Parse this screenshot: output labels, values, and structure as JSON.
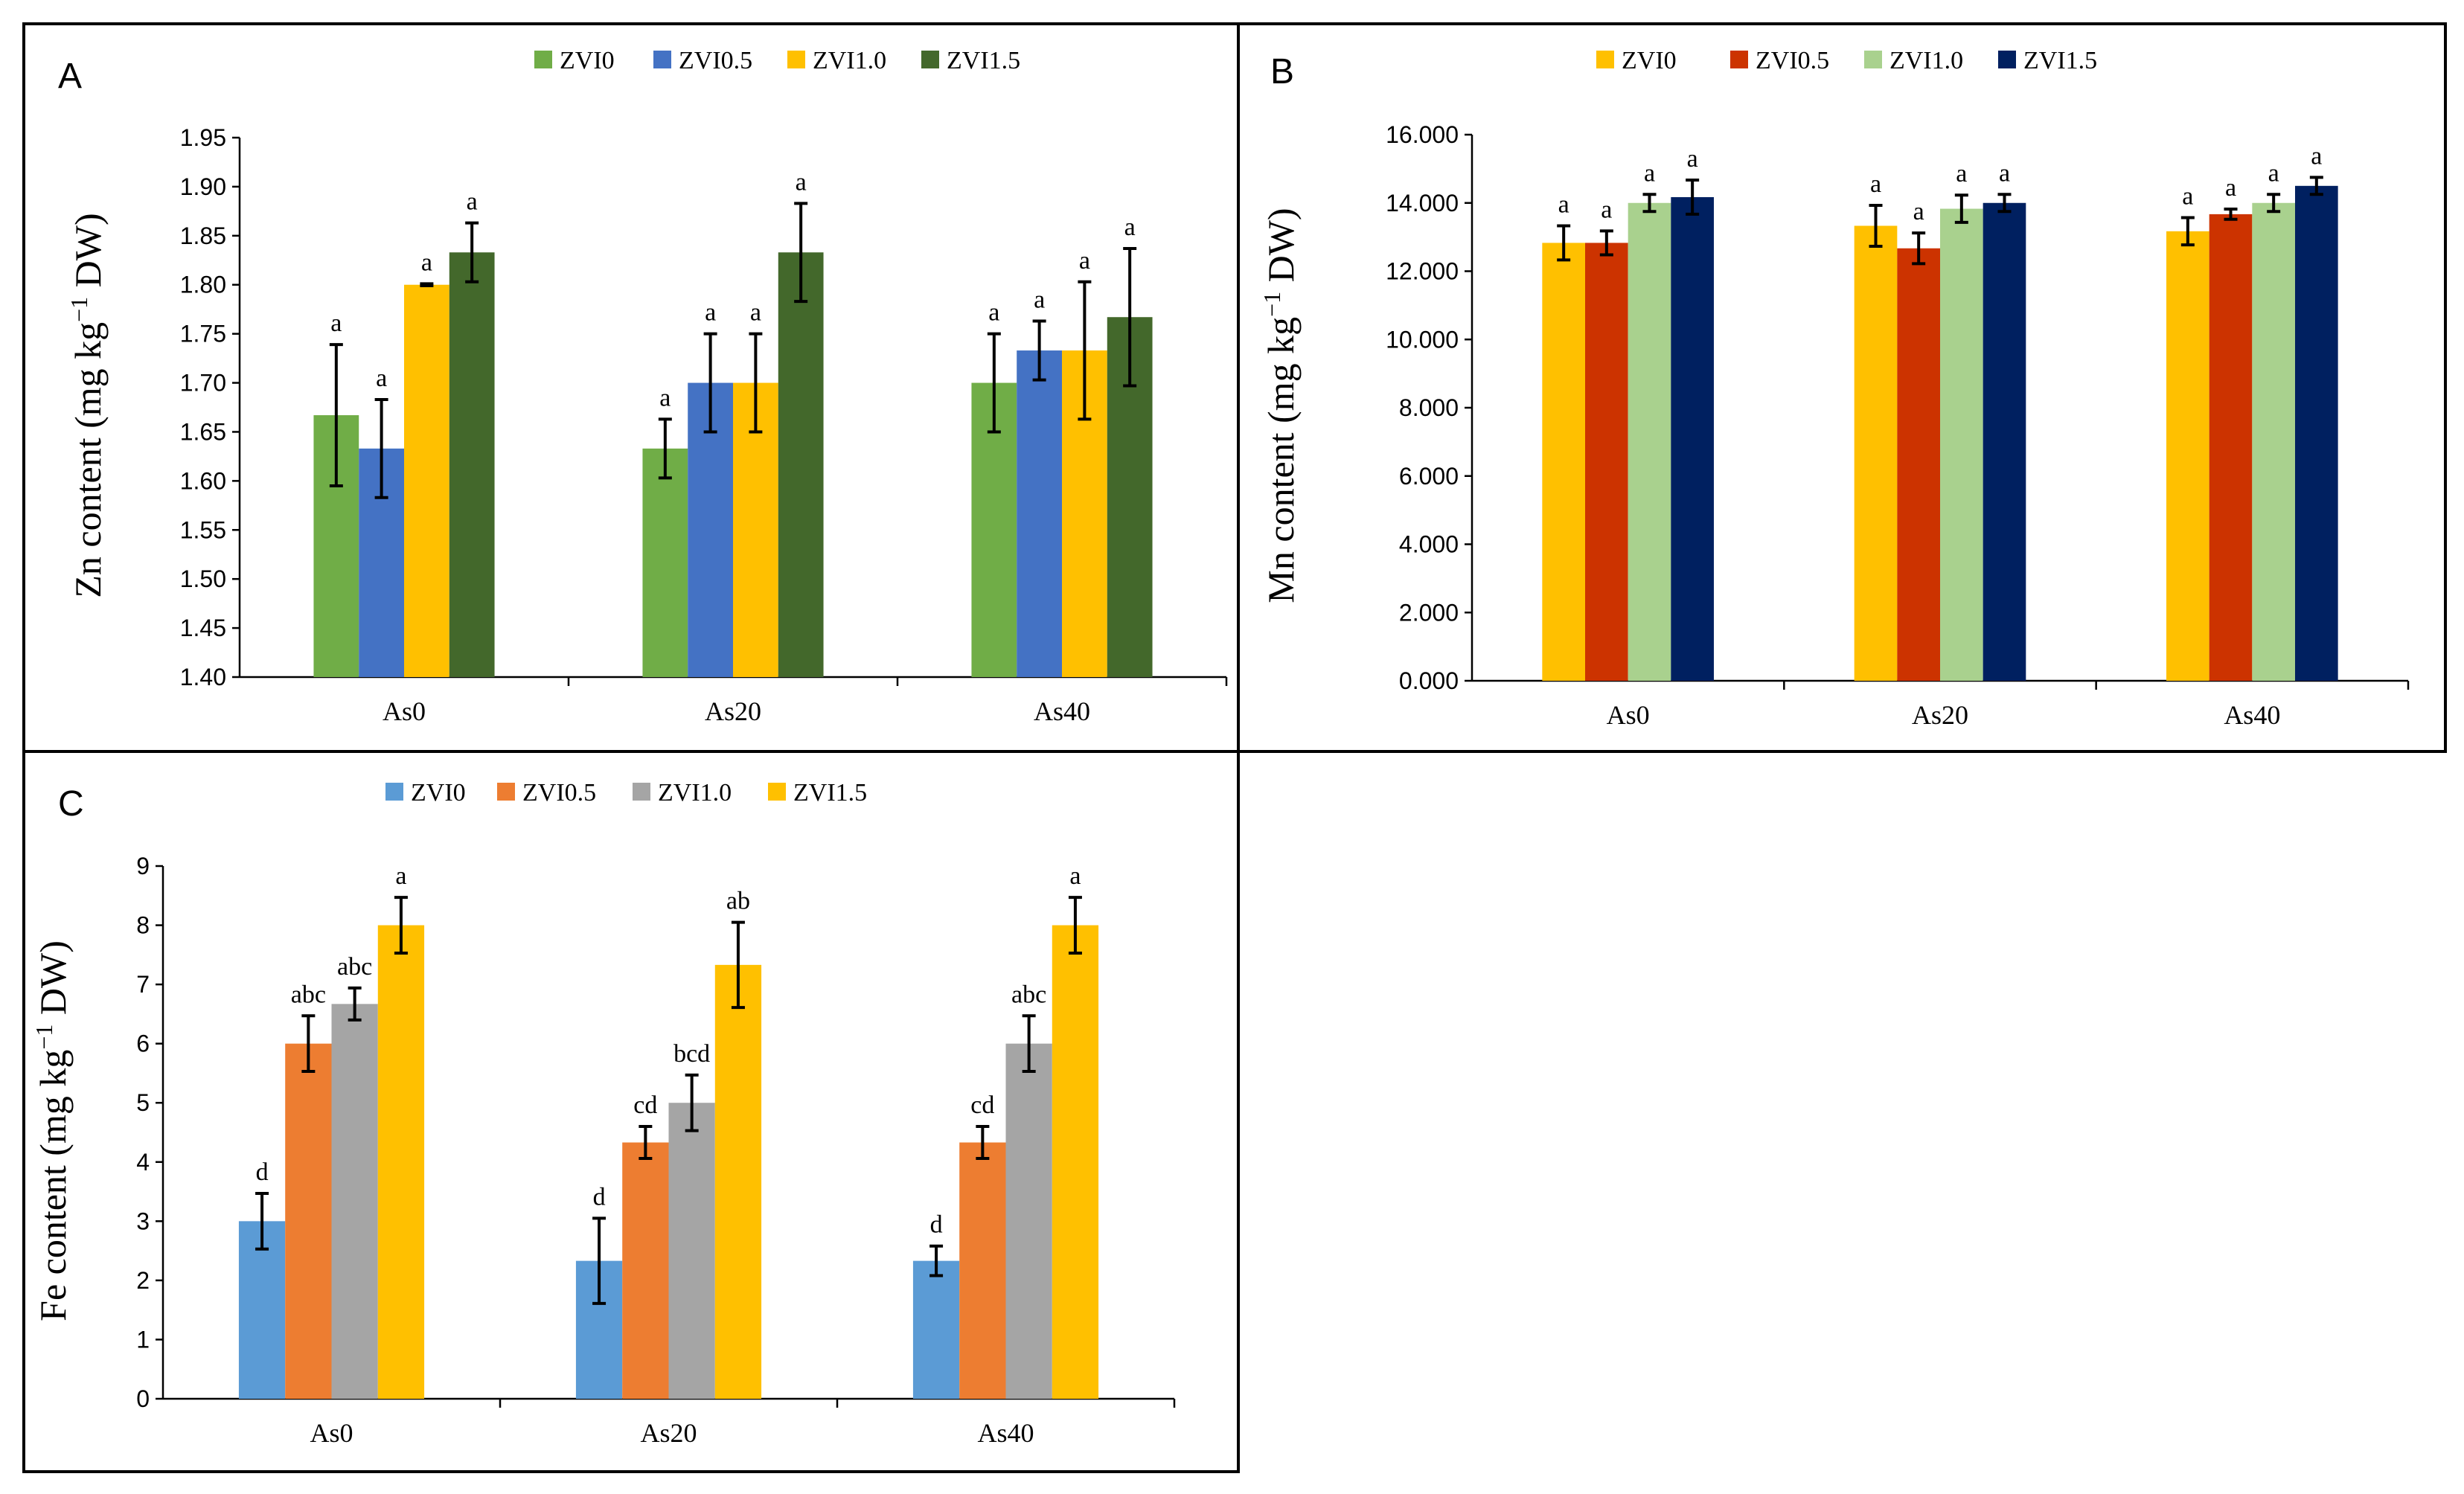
{
  "chart_data": [
    {
      "panel": "A",
      "type": "bar",
      "title": "",
      "xlabel": "",
      "ylabel_main": "Zn content (mg  kg",
      "ylabel_sup": "−1",
      "ylabel_tail": " DW)",
      "ylim": [
        1.4,
        1.95
      ],
      "yticks": [
        "1.40",
        "1.45",
        "1.50",
        "1.55",
        "1.60",
        "1.65",
        "1.70",
        "1.75",
        "1.80",
        "1.85",
        "1.90",
        "1.95"
      ],
      "ytick_values": [
        1.4,
        1.45,
        1.5,
        1.55,
        1.6,
        1.65,
        1.7,
        1.75,
        1.8,
        1.85,
        1.9,
        1.95
      ],
      "categories": [
        "As0",
        "As20",
        "As40"
      ],
      "legend_position": "top",
      "series": [
        {
          "name": "ZVI0",
          "color": "#70ad47",
          "values": [
            1.667,
            1.633,
            1.7
          ],
          "errors": [
            0.072,
            0.03,
            0.05
          ],
          "letters": [
            "a",
            "a",
            "a"
          ]
        },
        {
          "name": "ZVI0.5",
          "color": "#4472c4",
          "values": [
            1.633,
            1.7,
            1.733
          ],
          "errors": [
            0.05,
            0.05,
            0.03
          ],
          "letters": [
            "a",
            "a",
            "a"
          ]
        },
        {
          "name": "ZVI1.0",
          "color": "#ffc000",
          "values": [
            1.8,
            1.7,
            1.733
          ],
          "errors": [
            0.001,
            0.05,
            0.07
          ],
          "letters": [
            "a",
            "a",
            "a"
          ]
        },
        {
          "name": "ZVI1.5",
          "color": "#43682b",
          "values": [
            1.833,
            1.833,
            1.767
          ],
          "errors": [
            0.03,
            0.05,
            0.07
          ],
          "letters": [
            "a",
            "a",
            "a"
          ]
        }
      ]
    },
    {
      "panel": "B",
      "type": "bar",
      "title": "",
      "xlabel": "",
      "ylabel_main": "Mn content (mg kg",
      "ylabel_sup": "−1",
      "ylabel_tail": " DW)",
      "ylim": [
        0,
        16
      ],
      "yticks": [
        "0.000",
        "2.000",
        "4.000",
        "6.000",
        "8.000",
        "10.000",
        "12.000",
        "14.000",
        "16.000"
      ],
      "ytick_values": [
        0,
        2,
        4,
        6,
        8,
        10,
        12,
        14,
        16
      ],
      "categories": [
        "As0",
        "As20",
        "As40"
      ],
      "legend_position": "top",
      "series": [
        {
          "name": "ZVI0",
          "color": "#ffc000",
          "values": [
            12.83,
            13.33,
            13.17
          ],
          "errors": [
            0.5,
            0.6,
            0.4
          ],
          "letters": [
            "a",
            "a",
            "a"
          ]
        },
        {
          "name": "ZVI0.5",
          "color": "#cc3300",
          "values": [
            12.83,
            12.67,
            13.67
          ],
          "errors": [
            0.35,
            0.45,
            0.15
          ],
          "letters": [
            "a",
            "a",
            "a"
          ]
        },
        {
          "name": "ZVI1.0",
          "color": "#a9d18e",
          "values": [
            14.0,
            13.83,
            14.0
          ],
          "errors": [
            0.25,
            0.4,
            0.25
          ],
          "letters": [
            "a",
            "a",
            "a"
          ]
        },
        {
          "name": "ZVI1.5",
          "color": "#002060",
          "values": [
            14.17,
            14.0,
            14.5
          ],
          "errors": [
            0.5,
            0.25,
            0.25
          ],
          "letters": [
            "a",
            "a",
            "a"
          ]
        }
      ]
    },
    {
      "panel": "C",
      "type": "bar",
      "title": "",
      "xlabel": "",
      "ylabel_main": "Fe content (mg kg",
      "ylabel_sup": "−1",
      "ylabel_tail": " DW)",
      "ylim": [
        0,
        9
      ],
      "yticks": [
        "0",
        "1",
        "2",
        "3",
        "4",
        "5",
        "6",
        "7",
        "8",
        "9"
      ],
      "ytick_values": [
        0,
        1,
        2,
        3,
        4,
        5,
        6,
        7,
        8,
        9
      ],
      "categories": [
        "As0",
        "As20",
        "As40"
      ],
      "legend_position": "top",
      "series": [
        {
          "name": "ZVI0",
          "color": "#5b9bd5",
          "values": [
            3.0,
            2.33,
            2.33
          ],
          "errors": [
            0.47,
            0.72,
            0.25
          ],
          "letters": [
            "d",
            "d",
            "d"
          ]
        },
        {
          "name": "ZVI0.5",
          "color": "#ed7d31",
          "values": [
            6.0,
            4.33,
            4.33
          ],
          "errors": [
            0.47,
            0.27,
            0.27
          ],
          "letters": [
            "abc",
            "cd",
            "cd"
          ]
        },
        {
          "name": "ZVI1.0",
          "color": "#a5a5a5",
          "values": [
            6.67,
            5.0,
            6.0
          ],
          "errors": [
            0.27,
            0.47,
            0.47
          ],
          "letters": [
            "abc",
            "bcd",
            "abc"
          ]
        },
        {
          "name": "ZVI1.5",
          "color": "#ffc000",
          "values": [
            8.0,
            7.33,
            8.0
          ],
          "errors": [
            0.47,
            0.72,
            0.47
          ],
          "letters": [
            "a",
            "ab",
            "a"
          ]
        }
      ]
    }
  ]
}
